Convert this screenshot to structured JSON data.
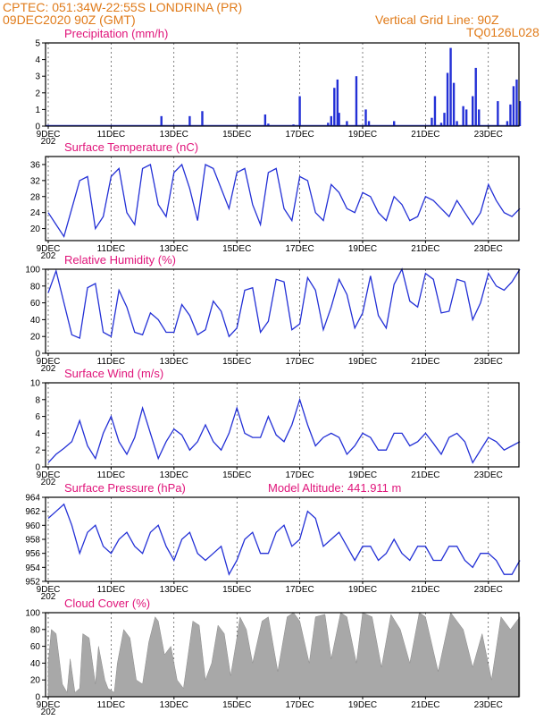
{
  "header": {
    "line1": "CPTEC:   051:34W-22:55S   LONDRINA (PR)",
    "line2": "09DEC2020 90Z (GMT)",
    "grid_note": "Vertical Grid Line: 90Z",
    "model_code": "TQ0126L028"
  },
  "colors": {
    "header": "#e07b1a",
    "title": "#e0147a",
    "series": "#2330d6",
    "cloud": "#a8a8a8"
  },
  "date_labels": [
    "9DEC",
    "11DEC",
    "13DEC",
    "15DEC",
    "17DEC",
    "19DEC",
    "21DEC",
    "23DEC"
  ],
  "year_fragment": "202",
  "chart_data": [
    {
      "id": "precip",
      "type": "bar",
      "title": "Precipitation (mm/h)",
      "ylim": [
        0,
        5
      ],
      "yticks": [
        "0",
        "1",
        "2",
        "3",
        "4",
        "5"
      ],
      "x_unit": "days since 9DEC",
      "x_range": [
        0,
        15
      ],
      "x": [
        0.06,
        0.5,
        1,
        1.5,
        2,
        2.5,
        3,
        3.5,
        3.6,
        4,
        4.5,
        4.9,
        5,
        5.5,
        6,
        6.5,
        6.9,
        7.0,
        7.2,
        7.5,
        7.8,
        8.0,
        8.2,
        8.5,
        8.9,
        9.0,
        9.1,
        9.2,
        9.25,
        9.5,
        9.8,
        10.1,
        10.2,
        10.5,
        10.8,
        11.0,
        11.5,
        12.0,
        12.2,
        12.3,
        12.4,
        12.5,
        12.6,
        12.7,
        12.8,
        12.9,
        13.0,
        13.1,
        13.2,
        13.3,
        13.4,
        13.5,
        13.6,
        13.7,
        13.8,
        13.9,
        14.0,
        14.3,
        14.5,
        14.6,
        14.7,
        14.8,
        14.9,
        15.0
      ],
      "values": [
        0.05,
        0.05,
        0.05,
        0.05,
        0.05,
        0.05,
        0.05,
        0.05,
        0.6,
        0.05,
        0.6,
        0.9,
        0.05,
        0.05,
        0.05,
        0.05,
        0.7,
        0.15,
        0.05,
        0.05,
        0.1,
        1.8,
        0.05,
        0.05,
        0.2,
        0.6,
        2.3,
        2.8,
        0.8,
        0.3,
        3.0,
        1.0,
        0.3,
        0.05,
        0.05,
        0.3,
        0.05,
        0.05,
        0.5,
        1.8,
        0.05,
        0.2,
        0.8,
        3.2,
        4.7,
        2.6,
        0.3,
        0.05,
        1.2,
        1.0,
        0.05,
        1.8,
        3.5,
        1.0,
        0.05,
        0.05,
        0.05,
        1.5,
        0.05,
        0.3,
        1.3,
        2.4,
        2.8,
        1.5
      ]
    },
    {
      "id": "temp",
      "type": "line",
      "title": "Surface Temperature (nC)",
      "ylim": [
        17,
        38
      ],
      "yticks": [
        "20",
        "24",
        "28",
        "32",
        "36"
      ],
      "x_range": [
        0,
        15
      ],
      "x": [
        0,
        0.25,
        0.5,
        0.75,
        1,
        1.25,
        1.5,
        1.75,
        2,
        2.25,
        2.5,
        2.75,
        3,
        3.25,
        3.5,
        3.75,
        4,
        4.25,
        4.5,
        4.75,
        5,
        5.25,
        5.5,
        5.75,
        6,
        6.25,
        6.5,
        6.75,
        7,
        7.25,
        7.5,
        7.75,
        8,
        8.25,
        8.5,
        8.75,
        9,
        9.25,
        9.5,
        9.75,
        10,
        10.25,
        10.5,
        10.75,
        11,
        11.25,
        11.5,
        11.75,
        12,
        12.25,
        12.5,
        12.75,
        13,
        13.25,
        13.5,
        13.75,
        14,
        14.25,
        14.5,
        14.75,
        15
      ],
      "values": [
        24,
        21,
        18,
        25,
        32,
        33,
        20,
        23,
        33,
        35,
        24,
        21,
        35,
        36,
        26,
        23,
        34,
        36,
        30,
        22,
        36,
        35,
        30,
        25,
        34,
        35,
        26,
        21,
        34,
        35,
        25,
        22,
        33,
        32,
        24,
        22,
        31,
        29,
        25,
        24,
        29,
        28,
        24,
        22,
        28,
        26,
        22,
        23,
        28,
        27,
        25,
        23,
        27,
        24,
        21,
        24,
        31,
        27,
        24,
        23,
        25
      ]
    },
    {
      "id": "rh",
      "type": "line",
      "title": "Relative Humidity (%)",
      "ylim": [
        0,
        100
      ],
      "yticks": [
        "0",
        "20",
        "40",
        "60",
        "80",
        "100"
      ],
      "x_range": [
        0,
        15
      ],
      "x": [
        0,
        0.25,
        0.5,
        0.75,
        1,
        1.25,
        1.5,
        1.75,
        2,
        2.25,
        2.5,
        2.75,
        3,
        3.25,
        3.5,
        3.75,
        4,
        4.25,
        4.5,
        4.75,
        5,
        5.25,
        5.5,
        5.75,
        6,
        6.25,
        6.5,
        6.75,
        7,
        7.25,
        7.5,
        7.75,
        8,
        8.25,
        8.5,
        8.75,
        9,
        9.25,
        9.5,
        9.75,
        10,
        10.25,
        10.5,
        10.75,
        11,
        11.25,
        11.5,
        11.75,
        12,
        12.25,
        12.5,
        12.75,
        13,
        13.25,
        13.5,
        13.75,
        14,
        14.25,
        14.5,
        14.75,
        15
      ],
      "values": [
        72,
        98,
        60,
        22,
        18,
        78,
        83,
        25,
        20,
        75,
        55,
        25,
        22,
        48,
        40,
        25,
        25,
        58,
        45,
        22,
        28,
        62,
        50,
        20,
        30,
        75,
        78,
        25,
        38,
        88,
        85,
        28,
        35,
        90,
        75,
        28,
        55,
        88,
        70,
        30,
        48,
        92,
        45,
        30,
        82,
        100,
        62,
        55,
        95,
        88,
        48,
        50,
        88,
        85,
        40,
        60,
        95,
        80,
        75,
        85,
        100
      ]
    },
    {
      "id": "wind",
      "type": "line",
      "title": "Surface Wind (m/s)",
      "ylim": [
        0,
        10
      ],
      "yticks": [
        "0",
        "2",
        "4",
        "6",
        "8",
        "10"
      ],
      "x_range": [
        0,
        15
      ],
      "x": [
        0,
        0.25,
        0.5,
        0.75,
        1,
        1.25,
        1.5,
        1.75,
        2,
        2.25,
        2.5,
        2.75,
        3,
        3.25,
        3.5,
        3.75,
        4,
        4.25,
        4.5,
        4.75,
        5,
        5.25,
        5.5,
        5.75,
        6,
        6.25,
        6.5,
        6.75,
        7,
        7.25,
        7.5,
        7.75,
        8,
        8.25,
        8.5,
        8.75,
        9,
        9.25,
        9.5,
        9.75,
        10,
        10.25,
        10.5,
        10.75,
        11,
        11.25,
        11.5,
        11.75,
        12,
        12.25,
        12.5,
        12.75,
        13,
        13.25,
        13.5,
        13.75,
        14,
        14.25,
        14.5,
        14.75,
        15
      ],
      "values": [
        0.5,
        1.5,
        2.2,
        3,
        5.5,
        2.5,
        1,
        4,
        6,
        3,
        1.5,
        3.5,
        7,
        4,
        1,
        3,
        4.5,
        3.8,
        2,
        3,
        5,
        3,
        2,
        4,
        7,
        4,
        3.5,
        3.5,
        6,
        3.8,
        3,
        5,
        8,
        5,
        2.5,
        3.5,
        4,
        3.5,
        1.5,
        2.5,
        4,
        3.5,
        2,
        2,
        4,
        4,
        2.5,
        3,
        4,
        2.8,
        1.5,
        3.5,
        4,
        3,
        0.5,
        2,
        3.5,
        3,
        2,
        2.5,
        3
      ]
    },
    {
      "id": "pressure",
      "type": "line",
      "title": "Surface Pressure (hPa)",
      "annotation": "Model Altitude: 441.911  m",
      "ylim": [
        952,
        964
      ],
      "yticks": [
        "952",
        "954",
        "956",
        "958",
        "960",
        "962",
        "964"
      ],
      "x_range": [
        0,
        15
      ],
      "x": [
        0,
        0.25,
        0.5,
        0.75,
        1,
        1.25,
        1.5,
        1.75,
        2,
        2.25,
        2.5,
        2.75,
        3,
        3.25,
        3.5,
        3.75,
        4,
        4.25,
        4.5,
        4.75,
        5,
        5.25,
        5.5,
        5.75,
        6,
        6.25,
        6.5,
        6.75,
        7,
        7.25,
        7.5,
        7.75,
        8,
        8.25,
        8.5,
        8.75,
        9,
        9.25,
        9.5,
        9.75,
        10,
        10.25,
        10.5,
        10.75,
        11,
        11.25,
        11.5,
        11.75,
        12,
        12.25,
        12.5,
        12.75,
        13,
        13.25,
        13.5,
        13.75,
        14,
        14.25,
        14.5,
        14.75,
        15
      ],
      "values": [
        961,
        962,
        963,
        960,
        956,
        959,
        960,
        957,
        956,
        958,
        959,
        957,
        956,
        959,
        960,
        957,
        955,
        958,
        959,
        956,
        955,
        956,
        957,
        953,
        955,
        958,
        959,
        956,
        956,
        959,
        960,
        957,
        958,
        962,
        961,
        957,
        958,
        959,
        957,
        955,
        957,
        957,
        955,
        956,
        958,
        956,
        955,
        957,
        957,
        955,
        955,
        957,
        957,
        955,
        954,
        956,
        956,
        955,
        953,
        953,
        955
      ]
    },
    {
      "id": "cloud",
      "type": "area",
      "title": "Cloud Cover (%)",
      "ylim": [
        0,
        100
      ],
      "yticks": [
        "0",
        "20",
        "40",
        "60",
        "80",
        "100"
      ],
      "x_range": [
        0,
        15
      ],
      "x": [
        0,
        0.1,
        0.25,
        0.45,
        0.6,
        0.7,
        0.85,
        1,
        1.1,
        1.3,
        1.5,
        1.6,
        1.8,
        1.9,
        2.1,
        2.2,
        2.4,
        2.6,
        2.8,
        3,
        3.2,
        3.4,
        3.5,
        3.7,
        3.9,
        4.1,
        4.3,
        4.6,
        4.8,
        5,
        5.2,
        5.4,
        5.6,
        5.8,
        6,
        6.1,
        6.3,
        6.5,
        6.8,
        7,
        7.3,
        7.6,
        7.8,
        8,
        8.3,
        8.5,
        8.8,
        9,
        9.3,
        9.5,
        9.8,
        10,
        10.3,
        10.6,
        10.9,
        11.2,
        11.5,
        11.8,
        12,
        12.4,
        12.8,
        13.2,
        13.5,
        13.8,
        14.1,
        14.4,
        14.7,
        15
      ],
      "values": [
        40,
        80,
        75,
        15,
        5,
        45,
        5,
        10,
        75,
        70,
        15,
        60,
        20,
        10,
        5,
        40,
        80,
        70,
        20,
        15,
        65,
        95,
        90,
        50,
        60,
        20,
        10,
        90,
        85,
        20,
        40,
        85,
        75,
        25,
        70,
        95,
        80,
        40,
        90,
        95,
        30,
        95,
        100,
        90,
        40,
        95,
        98,
        45,
        100,
        95,
        40,
        100,
        95,
        35,
        98,
        80,
        40,
        100,
        95,
        30,
        100,
        80,
        35,
        75,
        20,
        95,
        80,
        95
      ]
    }
  ]
}
